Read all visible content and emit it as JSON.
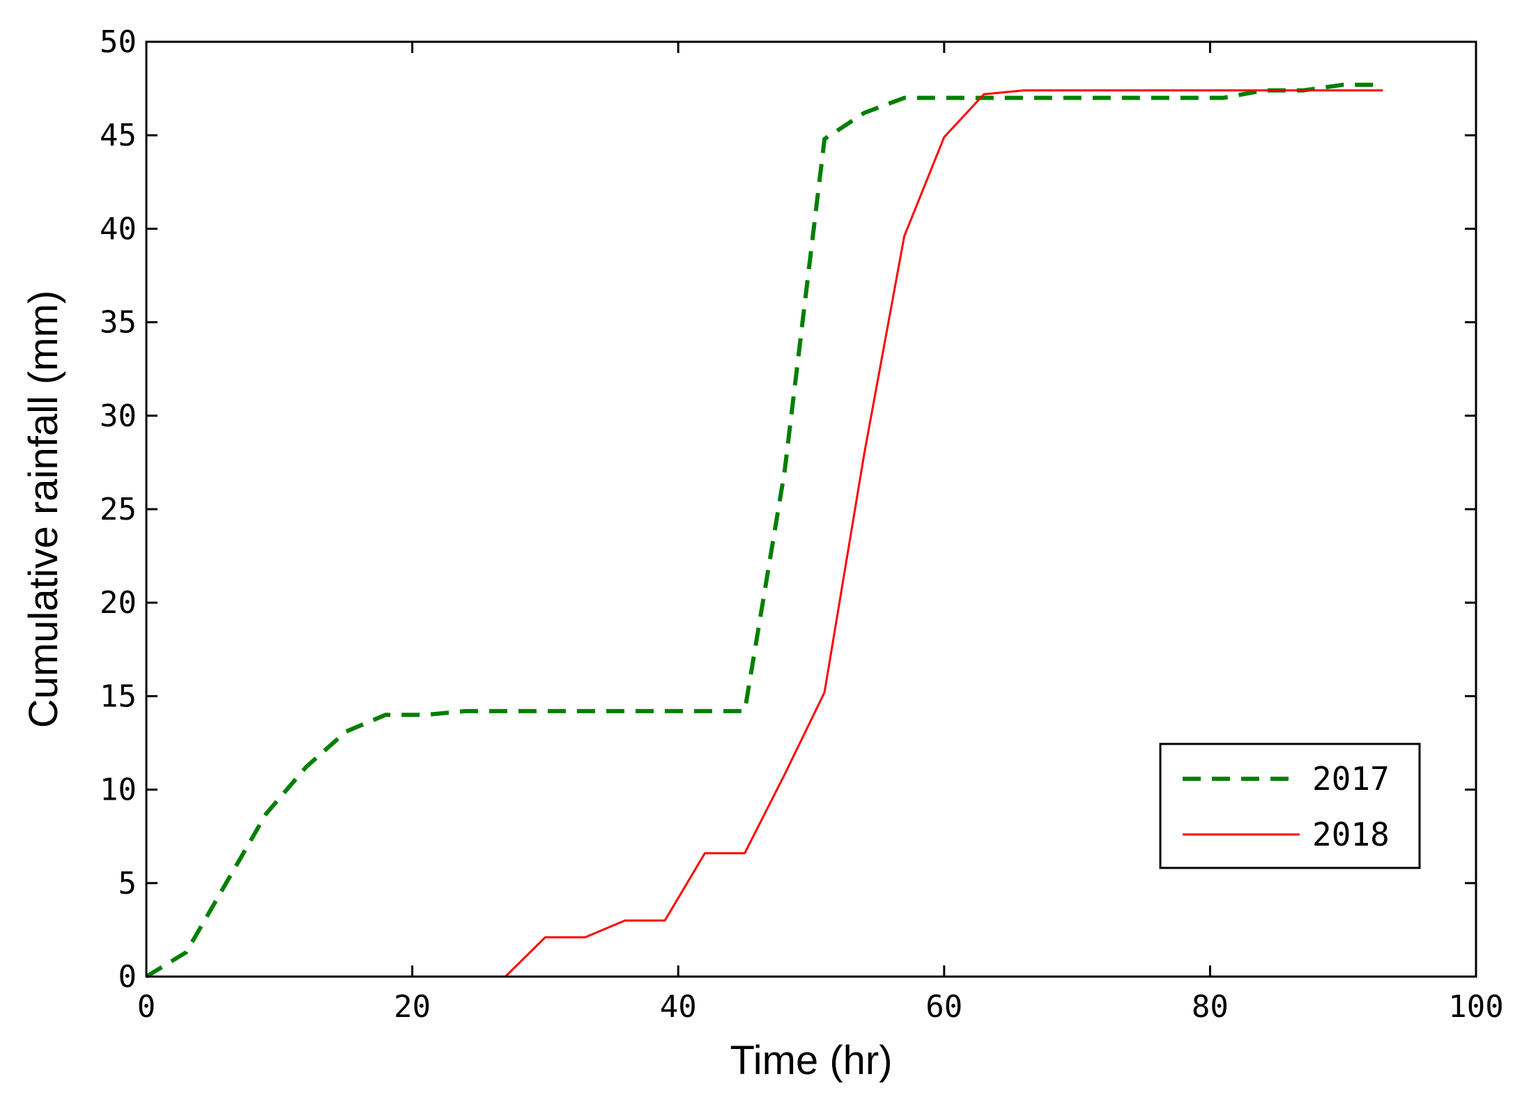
{
  "chart_data": {
    "type": "line",
    "title": "",
    "xlabel": "Time (hr)",
    "ylabel": "Cumulative rainfall (mm)",
    "xlim": [
      0,
      100
    ],
    "ylim": [
      0,
      50
    ],
    "xticks": [
      0,
      20,
      40,
      60,
      80,
      100
    ],
    "yticks": [
      0,
      5,
      10,
      15,
      20,
      25,
      30,
      35,
      40,
      45,
      50
    ],
    "xtick_labels": [
      "0",
      "20",
      "40",
      "60",
      "80",
      "100"
    ],
    "ytick_labels": [
      "0",
      "5",
      "10",
      "15",
      "20",
      "25",
      "30",
      "35",
      "40",
      "45",
      "50"
    ],
    "grid": false,
    "legend_position": "bottom-right",
    "series": [
      {
        "name": "2017",
        "color": "#007f00",
        "style": "dashed",
        "x": [
          0,
          3,
          6,
          9,
          12,
          15,
          18,
          21,
          24,
          27,
          30,
          33,
          36,
          39,
          42,
          45,
          48,
          51,
          54,
          57,
          60,
          63,
          66,
          69,
          72,
          75,
          78,
          81,
          84,
          87,
          90,
          93
        ],
        "y": [
          0,
          1.3,
          5,
          8.7,
          11.2,
          13.1,
          14,
          14,
          14.2,
          14.2,
          14.2,
          14.2,
          14.2,
          14.2,
          14.2,
          14.2,
          27,
          44.8,
          46.2,
          47,
          47,
          47,
          47,
          47,
          47,
          47,
          47,
          47,
          47.4,
          47.4,
          47.7,
          47.7
        ]
      },
      {
        "name": "2018",
        "color": "#ff0000",
        "style": "solid",
        "x": [
          0,
          3,
          6,
          9,
          12,
          15,
          18,
          21,
          24,
          27,
          30,
          33,
          36,
          39,
          42,
          45,
          48,
          51,
          54,
          57,
          60,
          63,
          66,
          69,
          72,
          75,
          78,
          81,
          84,
          87,
          90,
          93
        ],
        "y": [
          0,
          0,
          0,
          0,
          0,
          0,
          0,
          0,
          0,
          0,
          2.1,
          2.1,
          3,
          3,
          6.6,
          6.6,
          10.8,
          15.2,
          28,
          39.6,
          44.9,
          47.2,
          47.4,
          47.4,
          47.4,
          47.4,
          47.4,
          47.4,
          47.4,
          47.4,
          47.4,
          47.4
        ]
      }
    ]
  }
}
